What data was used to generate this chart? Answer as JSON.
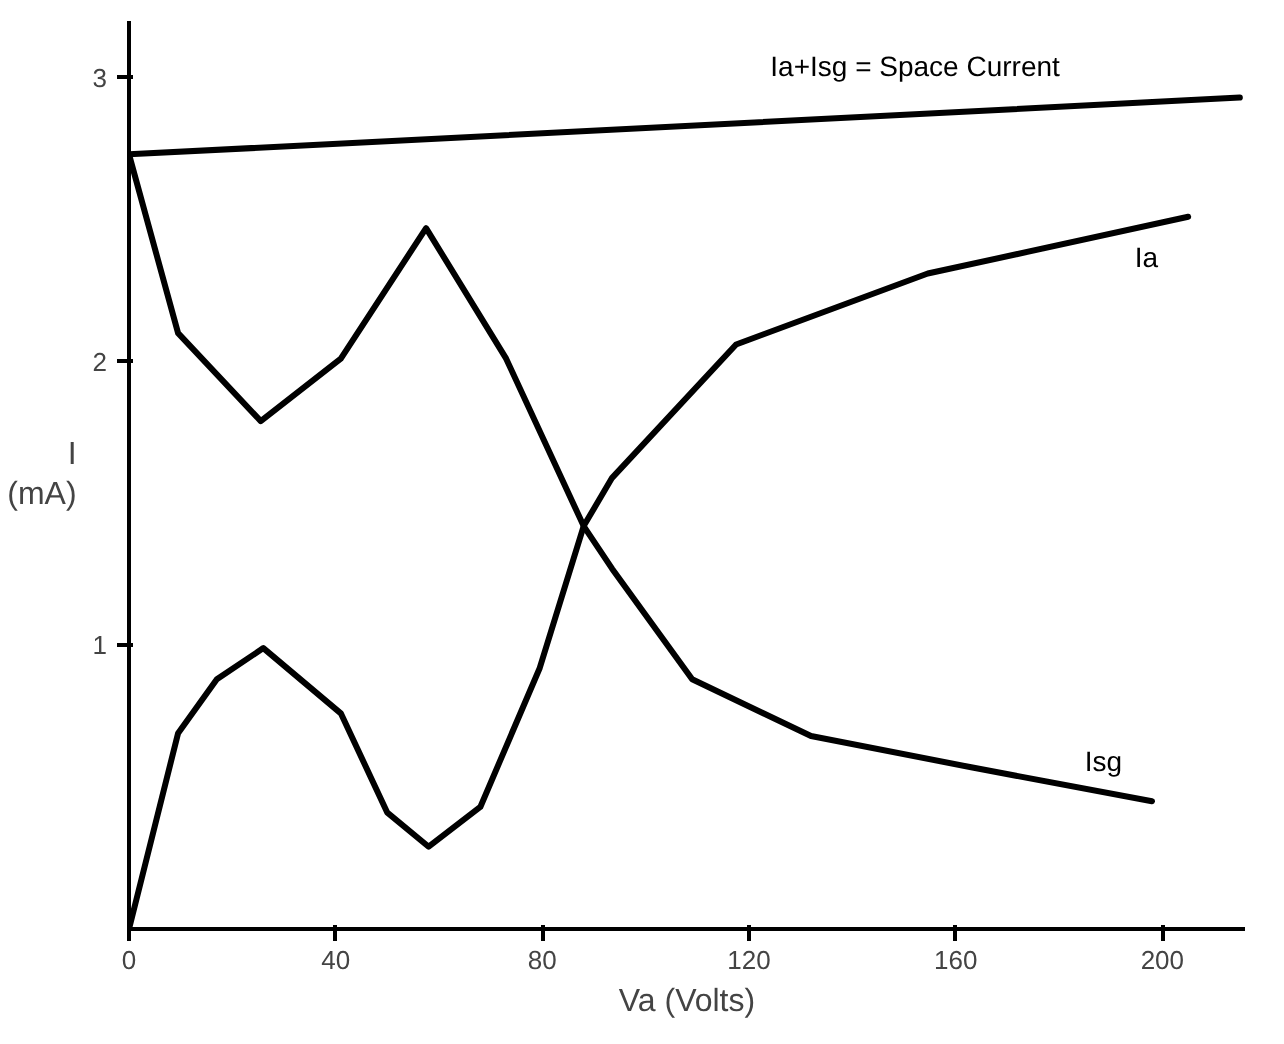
{
  "chart_data": {
    "type": "line",
    "xlabel": "Va (Volts)",
    "ylabel": "I (mA)",
    "xlim": [
      0,
      216
    ],
    "ylim": [
      0,
      3.2
    ],
    "xticks": [
      0,
      40,
      80,
      120,
      160,
      200
    ],
    "yticks": [
      1,
      2,
      3
    ],
    "grid": false,
    "marker": "none",
    "line_style": "solid",
    "series": [
      {
        "name": "Ia+Isg = Space Current",
        "color": "#000000",
        "x": [
          0,
          215
        ],
        "values": [
          2.73,
          2.93
        ]
      },
      {
        "name": "Ia",
        "color": "#000000",
        "x": [
          0,
          9.5,
          17,
          26,
          41,
          50,
          58,
          68,
          79.5,
          88,
          93.5,
          117.5,
          154.6,
          205
        ],
        "values": [
          0,
          0.69,
          0.88,
          0.99,
          0.76,
          0.41,
          0.29,
          0.43,
          0.92,
          1.42,
          1.59,
          2.06,
          2.31,
          2.51
        ]
      },
      {
        "name": "Isg",
        "color": "#000000",
        "x": [
          0,
          9.5,
          25.5,
          41,
          57.5,
          73,
          88,
          93.5,
          109,
          132,
          163,
          198
        ],
        "values": [
          2.73,
          2.1,
          1.79,
          2.01,
          2.47,
          2.01,
          1.42,
          1.27,
          0.88,
          0.68,
          0.57,
          0.45
        ]
      }
    ]
  }
}
